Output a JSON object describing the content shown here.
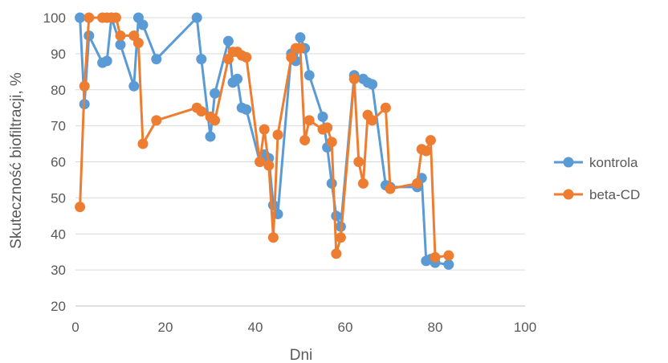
{
  "chart_data": {
    "type": "line",
    "title": "",
    "xlabel": "Dni",
    "ylabel": "Skuteczność biofiltracji, %",
    "xlim": [
      0,
      100
    ],
    "ylim": [
      20,
      100
    ],
    "xticks": [
      0,
      20,
      40,
      60,
      80,
      100
    ],
    "yticks": [
      20,
      30,
      40,
      50,
      60,
      70,
      80,
      90,
      100
    ],
    "grid": "horizontal",
    "legend_position": "right",
    "series": [
      {
        "name": "kontrola",
        "color": "#5B9BD5",
        "points": [
          [
            1,
            100
          ],
          [
            2,
            76
          ],
          [
            3,
            95
          ],
          [
            6,
            87.5
          ],
          [
            7,
            88
          ],
          [
            8,
            100
          ],
          [
            10,
            92.5
          ],
          [
            13,
            81
          ],
          [
            14,
            100
          ],
          [
            15,
            98
          ],
          [
            18,
            88.5
          ],
          [
            27,
            100
          ],
          [
            28,
            88.5
          ],
          [
            30,
            67
          ],
          [
            31,
            79
          ],
          [
            34,
            93.5
          ],
          [
            35,
            82
          ],
          [
            36,
            83
          ],
          [
            37,
            75
          ],
          [
            38,
            74.5
          ],
          [
            41,
            60
          ],
          [
            42,
            62
          ],
          [
            43,
            61
          ],
          [
            44,
            48
          ],
          [
            45,
            45.5
          ],
          [
            48,
            90
          ],
          [
            49,
            88
          ],
          [
            50,
            94.5
          ],
          [
            51,
            91.5
          ],
          [
            52,
            84
          ],
          [
            55,
            72.5
          ],
          [
            56,
            64
          ],
          [
            57,
            54
          ],
          [
            58,
            45
          ],
          [
            59,
            42
          ],
          [
            62,
            84
          ],
          [
            64,
            83
          ],
          [
            65,
            82
          ],
          [
            66,
            81.5
          ],
          [
            69,
            53.5
          ],
          [
            70,
            53
          ],
          [
            76,
            53
          ],
          [
            77,
            55.5
          ],
          [
            78,
            32.5
          ],
          [
            79,
            33
          ],
          [
            80,
            32
          ],
          [
            83,
            31.5
          ]
        ]
      },
      {
        "name": "beta-CD",
        "color": "#ED7D31",
        "points": [
          [
            1,
            47.5
          ],
          [
            2,
            81
          ],
          [
            3,
            100
          ],
          [
            6,
            100
          ],
          [
            7,
            100
          ],
          [
            8,
            100
          ],
          [
            9,
            100
          ],
          [
            10,
            95
          ],
          [
            13,
            95
          ],
          [
            14,
            93
          ],
          [
            15,
            65
          ],
          [
            18,
            71.5
          ],
          [
            27,
            75
          ],
          [
            28,
            74
          ],
          [
            30,
            72.5
          ],
          [
            31,
            71.5
          ],
          [
            34,
            88.5
          ],
          [
            35,
            90.5
          ],
          [
            36,
            90.5
          ],
          [
            37,
            89.5
          ],
          [
            38,
            89
          ],
          [
            41,
            60
          ],
          [
            42,
            69
          ],
          [
            43,
            59
          ],
          [
            44,
            39
          ],
          [
            45,
            67.5
          ],
          [
            48,
            89
          ],
          [
            49,
            91.5
          ],
          [
            50,
            91.5
          ],
          [
            51,
            66
          ],
          [
            52,
            71.5
          ],
          [
            55,
            69
          ],
          [
            56,
            69.5
          ],
          [
            57,
            65.5
          ],
          [
            58,
            34.5
          ],
          [
            59,
            39
          ],
          [
            62,
            83
          ],
          [
            63,
            60
          ],
          [
            64,
            54
          ],
          [
            65,
            73
          ],
          [
            66,
            71.5
          ],
          [
            69,
            75
          ],
          [
            70,
            52.5
          ],
          [
            76,
            54
          ],
          [
            77,
            63.5
          ],
          [
            78,
            63
          ],
          [
            79,
            66
          ],
          [
            80,
            33.5
          ],
          [
            83,
            34
          ]
        ]
      }
    ]
  }
}
